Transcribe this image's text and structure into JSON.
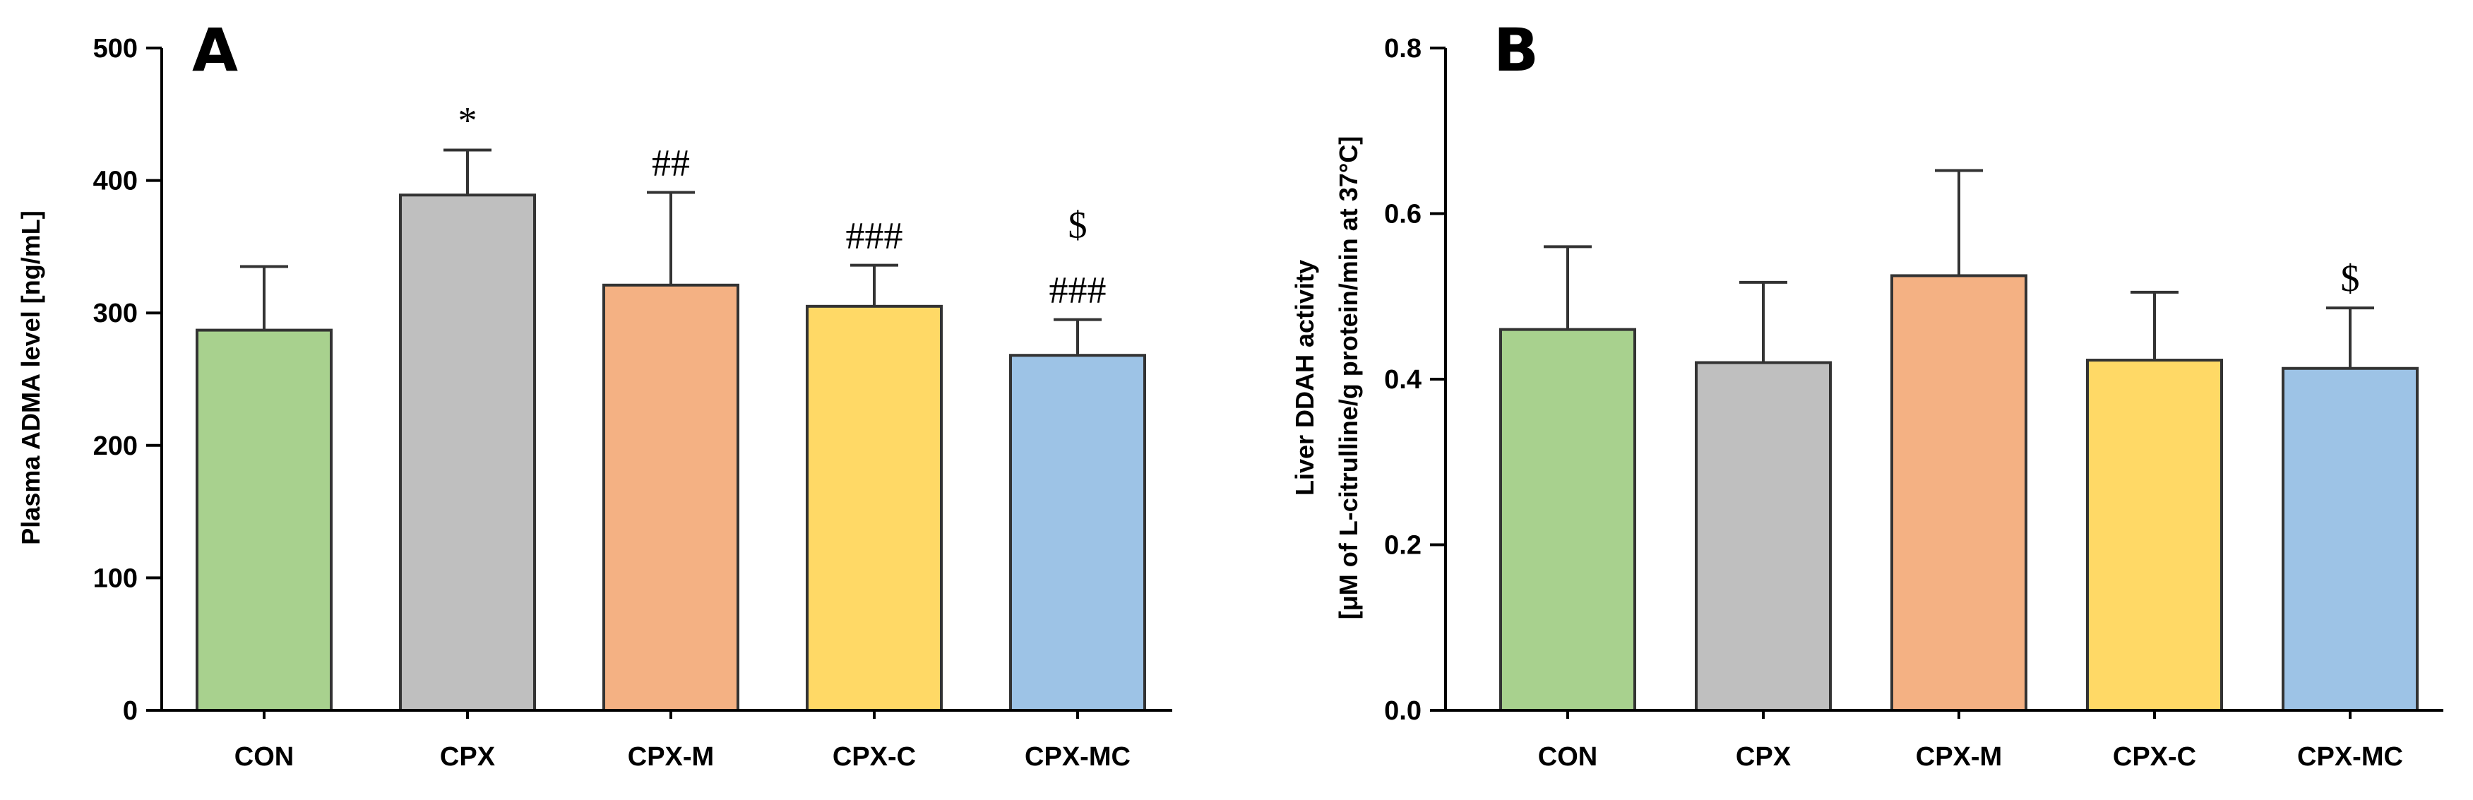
{
  "colors": {
    "CON": "#a8d18e",
    "CPX": "#bfbfbf",
    "CPX-M": "#f4b183",
    "CPX-C": "#ffd966",
    "CPX-MC": "#9dc3e6"
  },
  "chart_data": [
    {
      "type": "bar",
      "panel": "A",
      "categories": [
        "CON",
        "CPX",
        "CPX-M",
        "CPX-C",
        "CPX-MC"
      ],
      "values": [
        287,
        389,
        321,
        305,
        268
      ],
      "errors": [
        48,
        34,
        70,
        31,
        27
      ],
      "annotations": [
        {
          "lines": []
        },
        {
          "lines": [
            "*"
          ]
        },
        {
          "lines": [
            "##"
          ]
        },
        {
          "lines": [
            "###"
          ]
        },
        {
          "lines": [
            "$",
            "###"
          ]
        }
      ],
      "ylabel": "Plasma ADMA level [ng/mL]",
      "ylim": [
        0,
        500
      ],
      "yticks": [
        0,
        100,
        200,
        300,
        400,
        500
      ],
      "ytick_labels": [
        "0",
        "100",
        "200",
        "300",
        "400",
        "500"
      ],
      "grid": false,
      "legend": "none"
    },
    {
      "type": "bar",
      "panel": "B",
      "categories": [
        "CON",
        "CPX",
        "CPX-M",
        "CPX-C",
        "CPX-MC"
      ],
      "values": [
        0.46,
        0.42,
        0.525,
        0.423,
        0.413
      ],
      "errors": [
        0.1,
        0.097,
        0.127,
        0.082,
        0.073
      ],
      "annotations": [
        {
          "lines": []
        },
        {
          "lines": []
        },
        {
          "lines": []
        },
        {
          "lines": []
        },
        {
          "lines": [
            "$"
          ]
        }
      ],
      "ylabel": "Liver DDAH activity",
      "ylabel2": "[μM of L-citrulline/g protein/min at 37°C]",
      "ylim": [
        0,
        0.8
      ],
      "yticks": [
        0,
        0.2,
        0.4,
        0.6,
        0.8
      ],
      "ytick_labels": [
        "0.0",
        "0.2",
        "0.4",
        "0.6",
        "0.8"
      ],
      "grid": false,
      "legend": "none"
    }
  ]
}
